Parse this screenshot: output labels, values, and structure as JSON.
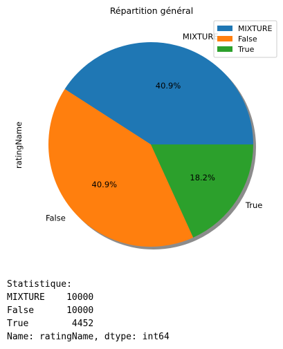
{
  "chart_data": {
    "type": "pie",
    "title": "Répartition général",
    "ylabel": "ratingName",
    "labels": [
      "MIXTURE",
      "False",
      "True"
    ],
    "values": [
      10000,
      10000,
      4452
    ],
    "percent_labels": [
      "40.9%",
      "40.9%",
      "18.2%"
    ],
    "colors": [
      "#1f77b4",
      "#ff7f0e",
      "#2ca02c"
    ],
    "legend": {
      "placement": "top-right",
      "entries": [
        "MIXTURE",
        "False",
        "True"
      ]
    },
    "shadow": true,
    "start_angle_deg": 0,
    "direction": "counterclockwise"
  },
  "output": {
    "lines": [
      "Statistique:",
      "MIXTURE    10000",
      "False      10000",
      "True        4452",
      "Name: ratingName, dtype: int64"
    ]
  }
}
